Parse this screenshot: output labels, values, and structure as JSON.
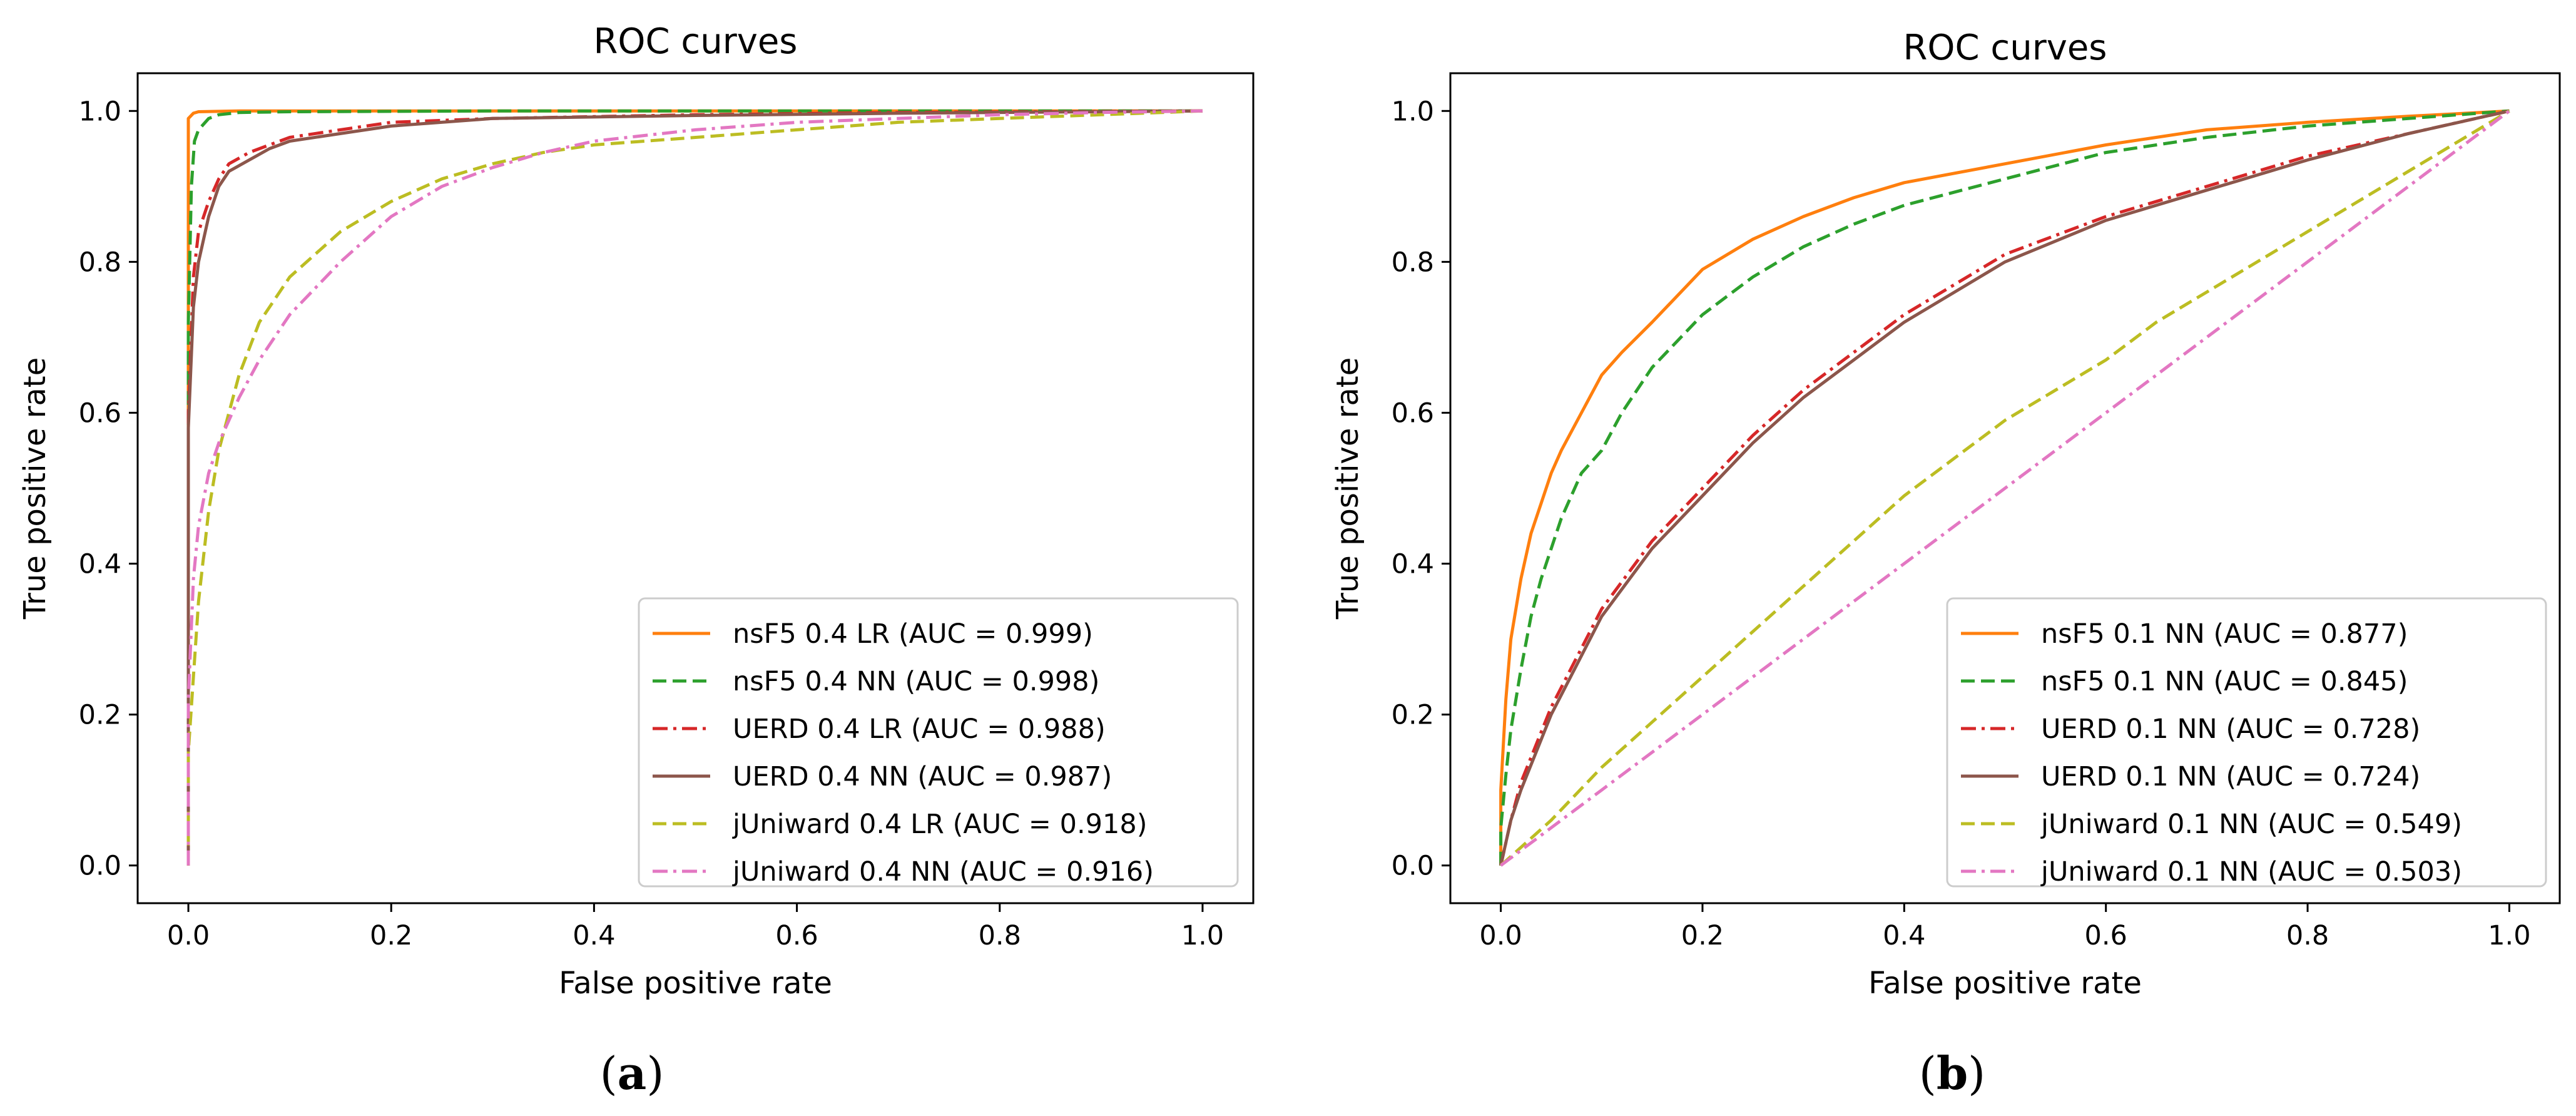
{
  "chart_data": [
    {
      "type": "line",
      "panel_caption": "a",
      "title": "ROC curves",
      "xlabel": "False positive rate",
      "ylabel": "True positive rate",
      "xlim": [
        -0.05,
        1.05
      ],
      "ylim": [
        -0.05,
        1.05
      ],
      "xticks": [
        0.0,
        0.2,
        0.4,
        0.6,
        0.8,
        1.0
      ],
      "yticks": [
        0.0,
        0.2,
        0.4,
        0.6,
        0.8,
        1.0
      ],
      "tick_labels": [
        "0.0",
        "0.2",
        "0.4",
        "0.6",
        "0.8",
        "1.0"
      ],
      "legend_position": "lower right",
      "series": [
        {
          "name": "nsF5 0.4 LR (AUC = 0.999)",
          "color": "#ff7f0e",
          "style": "solid",
          "x": [
            0,
            0,
            0.005,
            0.01,
            0.05,
            0.2,
            0.5,
            1.0
          ],
          "y": [
            0,
            0.99,
            0.997,
            0.999,
            1.0,
            1.0,
            1.0,
            1.0
          ]
        },
        {
          "name": "nsF5 0.4 NN (AUC = 0.998)",
          "color": "#2ca02c",
          "style": "dashed",
          "x": [
            0,
            0,
            0.003,
            0.006,
            0.01,
            0.02,
            0.03,
            0.05,
            0.1,
            0.3,
            1.0
          ],
          "y": [
            0,
            0.72,
            0.9,
            0.96,
            0.975,
            0.99,
            0.995,
            0.998,
            0.999,
            1.0,
            1.0
          ]
        },
        {
          "name": "UERD 0.4 LR (AUC = 0.988)",
          "color": "#d62728",
          "style": "dashdot",
          "x": [
            0,
            0,
            0.005,
            0.01,
            0.02,
            0.03,
            0.04,
            0.06,
            0.08,
            0.1,
            0.15,
            0.2,
            0.3,
            0.5,
            0.7,
            1.0
          ],
          "y": [
            0,
            0.6,
            0.78,
            0.84,
            0.88,
            0.91,
            0.93,
            0.945,
            0.955,
            0.965,
            0.975,
            0.985,
            0.99,
            0.995,
            0.998,
            1.0
          ]
        },
        {
          "name": "UERD 0.4 NN (AUC = 0.987)",
          "color": "#8c564b",
          "style": "solid",
          "x": [
            0,
            0,
            0.005,
            0.01,
            0.02,
            0.03,
            0.04,
            0.06,
            0.08,
            0.1,
            0.15,
            0.2,
            0.3,
            0.5,
            0.7,
            1.0
          ],
          "y": [
            0,
            0.58,
            0.74,
            0.8,
            0.86,
            0.9,
            0.92,
            0.935,
            0.95,
            0.96,
            0.97,
            0.98,
            0.99,
            0.994,
            0.997,
            1.0
          ]
        },
        {
          "name": "jUniward 0.4 LR (AUC = 0.918)",
          "color": "#bcbd22",
          "style": "dashed",
          "x": [
            0,
            0,
            0.005,
            0.01,
            0.02,
            0.03,
            0.05,
            0.07,
            0.1,
            0.15,
            0.2,
            0.25,
            0.3,
            0.35,
            0.4,
            0.5,
            0.6,
            0.7,
            0.8,
            0.9,
            1.0
          ],
          "y": [
            0,
            0.15,
            0.25,
            0.35,
            0.47,
            0.55,
            0.65,
            0.72,
            0.78,
            0.84,
            0.88,
            0.91,
            0.93,
            0.945,
            0.955,
            0.965,
            0.975,
            0.985,
            0.99,
            0.995,
            1.0
          ]
        },
        {
          "name": "jUniward 0.4 NN (AUC = 0.916)",
          "color": "#e377c2",
          "style": "dashdot",
          "x": [
            0,
            0,
            0.005,
            0.01,
            0.02,
            0.03,
            0.05,
            0.07,
            0.1,
            0.15,
            0.2,
            0.25,
            0.3,
            0.35,
            0.4,
            0.5,
            0.6,
            0.7,
            0.8,
            0.9,
            1.0
          ],
          "y": [
            0,
            0.22,
            0.38,
            0.45,
            0.52,
            0.56,
            0.62,
            0.67,
            0.73,
            0.8,
            0.86,
            0.9,
            0.925,
            0.945,
            0.96,
            0.975,
            0.985,
            0.99,
            0.995,
            0.998,
            1.0
          ]
        }
      ]
    },
    {
      "type": "line",
      "panel_caption": "b",
      "title": "ROC curves",
      "xlabel": "False positive rate",
      "ylabel": "True positive rate",
      "xlim": [
        -0.05,
        1.05
      ],
      "ylim": [
        -0.05,
        1.05
      ],
      "xticks": [
        0.0,
        0.2,
        0.4,
        0.6,
        0.8,
        1.0
      ],
      "yticks": [
        0.0,
        0.2,
        0.4,
        0.6,
        0.8,
        1.0
      ],
      "tick_labels": [
        "0.0",
        "0.2",
        "0.4",
        "0.6",
        "0.8",
        "1.0"
      ],
      "legend_position": "lower right",
      "series": [
        {
          "name": "nsF5 0.1 NN (AUC = 0.877)",
          "color": "#ff7f0e",
          "style": "solid",
          "x": [
            0,
            0,
            0.005,
            0.01,
            0.02,
            0.03,
            0.04,
            0.05,
            0.06,
            0.08,
            0.1,
            0.12,
            0.15,
            0.2,
            0.25,
            0.3,
            0.35,
            0.4,
            0.5,
            0.6,
            0.7,
            0.8,
            0.9,
            1.0
          ],
          "y": [
            0,
            0.1,
            0.22,
            0.3,
            0.38,
            0.44,
            0.48,
            0.52,
            0.55,
            0.6,
            0.65,
            0.68,
            0.72,
            0.79,
            0.83,
            0.86,
            0.885,
            0.905,
            0.93,
            0.955,
            0.975,
            0.985,
            0.993,
            1.0
          ]
        },
        {
          "name": "nsF5 0.1 NN (AUC = 0.845)",
          "color": "#2ca02c",
          "style": "dashed",
          "x": [
            0,
            0,
            0.005,
            0.01,
            0.02,
            0.03,
            0.04,
            0.05,
            0.06,
            0.08,
            0.1,
            0.12,
            0.15,
            0.2,
            0.25,
            0.3,
            0.35,
            0.4,
            0.5,
            0.6,
            0.7,
            0.8,
            0.9,
            1.0
          ],
          "y": [
            0,
            0.05,
            0.12,
            0.18,
            0.26,
            0.33,
            0.38,
            0.42,
            0.46,
            0.52,
            0.55,
            0.6,
            0.66,
            0.73,
            0.78,
            0.82,
            0.85,
            0.875,
            0.91,
            0.945,
            0.965,
            0.98,
            0.99,
            1.0
          ]
        },
        {
          "name": "UERD 0.1 NN (AUC = 0.728)",
          "color": "#d62728",
          "style": "dashdot",
          "x": [
            0,
            0.01,
            0.02,
            0.05,
            0.1,
            0.15,
            0.2,
            0.25,
            0.3,
            0.35,
            0.4,
            0.45,
            0.5,
            0.6,
            0.7,
            0.8,
            0.9,
            1.0
          ],
          "y": [
            0,
            0.06,
            0.11,
            0.21,
            0.34,
            0.43,
            0.5,
            0.57,
            0.63,
            0.68,
            0.73,
            0.77,
            0.81,
            0.86,
            0.9,
            0.94,
            0.97,
            1.0
          ]
        },
        {
          "name": "UERD 0.1 NN (AUC = 0.724)",
          "color": "#8c564b",
          "style": "solid",
          "x": [
            0,
            0.01,
            0.02,
            0.05,
            0.1,
            0.15,
            0.2,
            0.25,
            0.3,
            0.35,
            0.4,
            0.45,
            0.5,
            0.6,
            0.7,
            0.8,
            0.9,
            1.0
          ],
          "y": [
            0,
            0.06,
            0.1,
            0.2,
            0.33,
            0.42,
            0.49,
            0.56,
            0.62,
            0.67,
            0.72,
            0.76,
            0.8,
            0.855,
            0.895,
            0.935,
            0.97,
            1.0
          ]
        },
        {
          "name": "jUniward 0.1 NN (AUC = 0.549)",
          "color": "#bcbd22",
          "style": "dashed",
          "x": [
            0,
            0.05,
            0.1,
            0.15,
            0.2,
            0.25,
            0.3,
            0.35,
            0.4,
            0.45,
            0.5,
            0.55,
            0.6,
            0.65,
            0.7,
            0.75,
            0.8,
            0.85,
            0.9,
            0.95,
            1.0
          ],
          "y": [
            0,
            0.06,
            0.13,
            0.19,
            0.25,
            0.31,
            0.37,
            0.43,
            0.49,
            0.54,
            0.59,
            0.63,
            0.67,
            0.72,
            0.76,
            0.8,
            0.84,
            0.88,
            0.92,
            0.96,
            1.0
          ]
        },
        {
          "name": "jUniward 0.1 NN (AUC = 0.503)",
          "color": "#e377c2",
          "style": "dashdot",
          "x": [
            0,
            0.1,
            0.2,
            0.3,
            0.4,
            0.5,
            0.6,
            0.7,
            0.8,
            0.9,
            1.0
          ],
          "y": [
            0,
            0.1,
            0.2,
            0.3,
            0.4,
            0.5,
            0.6,
            0.7,
            0.8,
            0.9,
            1.0
          ]
        }
      ]
    }
  ]
}
